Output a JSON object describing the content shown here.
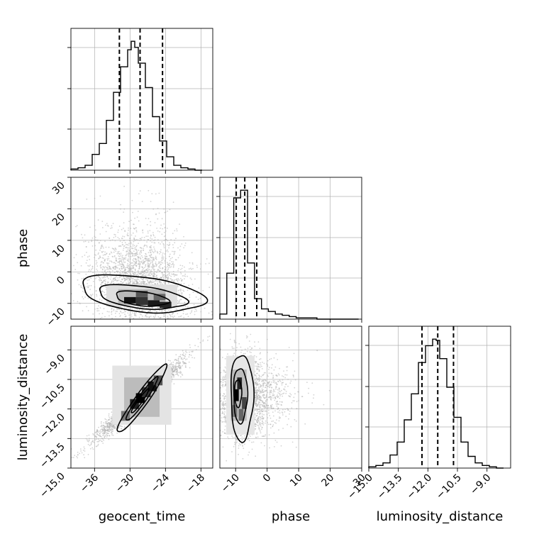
{
  "chart_data": {
    "type": "corner",
    "parameters": [
      "geocent_time",
      "phase",
      "luminosity_distance"
    ],
    "ranges": {
      "geocent_time": [
        -40,
        -16
      ],
      "phase": [
        -15,
        30
      ],
      "luminosity_distance": [
        -15.0,
        -7.8
      ]
    },
    "ticks": {
      "geocent_time": [
        -36,
        -30,
        -24,
        -18
      ],
      "phase_x": [
        -10,
        0,
        10,
        20,
        30
      ],
      "phase_y": [
        -10,
        0,
        10,
        20,
        30
      ],
      "luminosity_distance": [
        -15.0,
        -13.5,
        -12.0,
        -10.5,
        -9.0
      ]
    },
    "tick_labels": {
      "geocent_time": [
        "−36",
        "−30",
        "−24",
        "−18"
      ],
      "phase_x": [
        "−10",
        "0",
        "10",
        "20",
        "30"
      ],
      "phase_y": [
        "−10",
        "0",
        "10",
        "20",
        "30"
      ],
      "luminosity_distance": [
        "−15.0",
        "−13.5",
        "−12.0",
        "−10.5",
        "−9.0"
      ]
    },
    "axis_labels": {
      "geocent_time": "geocent_time",
      "phase": "phase",
      "luminosity_distance": "luminosity_distance"
    },
    "histograms": {
      "geocent_time": {
        "bin_edges": [
          -40,
          -38.8,
          -37.6,
          -36.4,
          -35.2,
          -34.0,
          -32.8,
          -31.6,
          -30.4,
          -29.8,
          -29.2,
          -28.6,
          -27.4,
          -26.2,
          -25.0,
          -23.8,
          -22.6,
          -21.4,
          -20.2,
          -19.0,
          -17.8
        ],
        "counts": [
          1,
          2,
          4,
          13,
          22,
          41,
          64,
          85,
          99,
          106,
          101,
          88,
          68,
          44,
          24,
          11,
          4,
          2,
          1,
          0
        ],
        "quantiles": [
          -31.8,
          -28.3,
          -24.5
        ]
      },
      "phase": {
        "bin_edges": [
          -15,
          -12.8,
          -10.6,
          -8.4,
          -6.2,
          -4.0,
          -1.8,
          0.4,
          2.6,
          4.8,
          7.0,
          9.2,
          11.4,
          13.6,
          15.8,
          18.0,
          20.2,
          22.4,
          24.6,
          26.8,
          29.0
        ],
        "counts": [
          4,
          36,
          95,
          101,
          44,
          16,
          8,
          6,
          4,
          3,
          2,
          1,
          1,
          1,
          0,
          0,
          0,
          0,
          0,
          0
        ],
        "quantiles": [
          -9.8,
          -7.1,
          -3.3
        ]
      },
      "luminosity_distance": {
        "bin_edges": [
          -15.0,
          -14.64,
          -14.28,
          -13.92,
          -13.56,
          -13.2,
          -12.84,
          -12.48,
          -12.12,
          -11.76,
          -11.58,
          -11.4,
          -11.04,
          -10.68,
          -10.32,
          -9.96,
          -9.6,
          -9.24,
          -8.88,
          -8.52,
          -8.16
        ],
        "counts": [
          1,
          2,
          4,
          10,
          20,
          37,
          57,
          81,
          94,
          99,
          98,
          84,
          62,
          39,
          20,
          9,
          4,
          2,
          1,
          0
        ],
        "quantiles": [
          -12.3,
          -11.5,
          -10.7
        ]
      }
    },
    "scatter_2d": {
      "phase_vs_geocent_time": {
        "center": [
          -28.3,
          -5.0
        ],
        "contour_levels": [
          {
            "center": [
              -28.0,
              -7.0
            ],
            "half_widths": [
              10.5,
              5.5
            ],
            "tilt": -0.35
          },
          {
            "center": [
              -28.0,
              -8.0
            ],
            "half_widths": [
              7.5,
              3.5
            ],
            "tilt": -0.35
          },
          {
            "center": [
              -28.0,
              -8.5
            ],
            "half_widths": [
              4.5,
              2.2
            ],
            "tilt": -0.35
          }
        ]
      },
      "luminosity_distance_vs_geocent_time": {
        "center": [
          -28.3,
          -11.5
        ],
        "correlation": 0.98,
        "contour_levels": [
          {
            "center": [
              -28.0,
              -11.5
            ],
            "half_widths": [
              7.0,
              1.8
            ]
          },
          {
            "center": [
              -28.0,
              -11.5
            ],
            "half_widths": [
              4.5,
              1.1
            ]
          },
          {
            "center": [
              -28.3,
              -11.6
            ],
            "half_widths": [
              2.5,
              0.6
            ]
          }
        ]
      },
      "luminosity_distance_vs_phase": {
        "center": [
          -8.5,
          -11.4
        ],
        "contour_levels": [
          {
            "center": [
              -8.0,
              -11.4
            ],
            "half_widths": [
              6.5,
              2.2
            ]
          },
          {
            "center": [
              -8.5,
              -11.3
            ],
            "half_widths": [
              4.0,
              1.4
            ]
          },
          {
            "center": [
              -9.2,
              -11.2
            ],
            "half_widths": [
              2.0,
              0.7
            ]
          }
        ]
      }
    },
    "grid": true,
    "colors": {
      "line": "#000000",
      "scatter": "#b0b0b0",
      "grid": "#b0b0b0"
    }
  }
}
